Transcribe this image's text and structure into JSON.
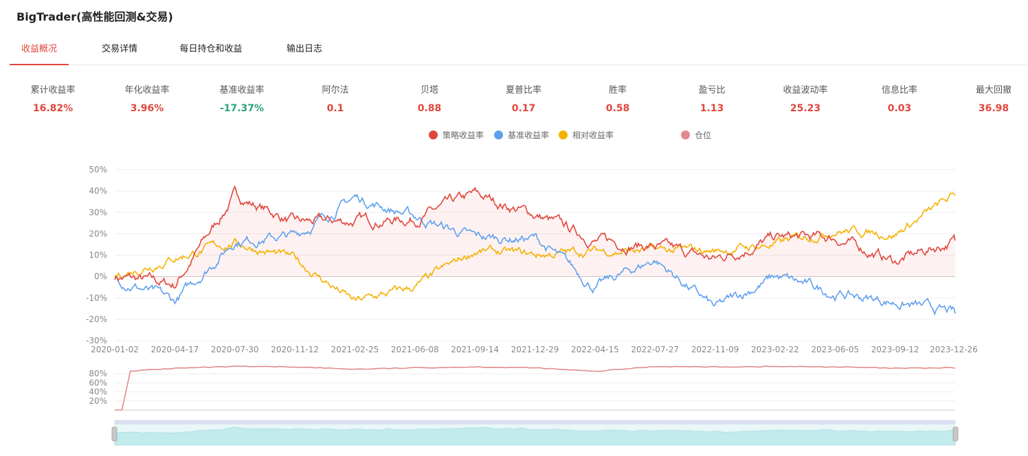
{
  "app": {
    "title": "BigTrader(高性能回测&交易)"
  },
  "tabs": [
    {
      "label": "收益概况",
      "active": true
    },
    {
      "label": "交易详情",
      "active": false
    },
    {
      "label": "每日持仓和收益",
      "active": false
    },
    {
      "label": "输出日志",
      "active": false
    }
  ],
  "metrics": [
    {
      "label": "累计收益率",
      "value": "16.82%",
      "color": "#e0463c"
    },
    {
      "label": "年化收益率",
      "value": "3.96%",
      "color": "#e0463c"
    },
    {
      "label": "基准收益率",
      "value": "-17.37%",
      "color": "#2aa57a"
    },
    {
      "label": "阿尔法",
      "value": "0.1",
      "color": "#e0463c"
    },
    {
      "label": "贝塔",
      "value": "0.88",
      "color": "#e0463c"
    },
    {
      "label": "夏普比率",
      "value": "0.17",
      "color": "#e0463c"
    },
    {
      "label": "胜率",
      "value": "0.58",
      "color": "#e0463c"
    },
    {
      "label": "盈亏比",
      "value": "1.13",
      "color": "#e0463c"
    },
    {
      "label": "收益波动率",
      "value": "25.23",
      "color": "#e0463c"
    },
    {
      "label": "信息比率",
      "value": "0.03",
      "color": "#e0463c"
    },
    {
      "label": "最大回撤",
      "value": "36.98",
      "color": "#e0463c"
    }
  ],
  "legend": [
    {
      "label": "策略收益率",
      "color": "#e0463c"
    },
    {
      "label": "基准收益率",
      "color": "#5fa0ee"
    },
    {
      "label": "相对收益率",
      "color": "#f5b000"
    },
    {
      "label": "仓位",
      "color": "#e38a8a"
    }
  ],
  "chart_data": [
    {
      "type": "line",
      "x": [
        "2020-01-02",
        "2020-04-17",
        "2020-07-30",
        "2020-11-12",
        "2021-02-25",
        "2021-06-08",
        "2021-09-14",
        "2021-12-29",
        "2022-04-15",
        "2022-07-27",
        "2022-11-09",
        "2023-02-22",
        "2023-06-05",
        "2023-09-12",
        "2023-12-26"
      ],
      "x_tick_labels": [
        "2020-01-02",
        "2020-04-17",
        "2020-07-30",
        "2020-11-12",
        "2021-02-25",
        "2021-06-08",
        "2021-09-14",
        "2021-12-29",
        "2022-04-15",
        "2022-07-27",
        "2022-11-09",
        "2023-02-22",
        "2023-06-05",
        "2023-09-12",
        "2023-12-26"
      ],
      "y_tick_labels": [
        "50%",
        "40%",
        "30%",
        "20%",
        "10%",
        "0%",
        "-10%",
        "-20%",
        "-30%"
      ],
      "ylim": [
        -30,
        50
      ],
      "y_unit": "%",
      "grid": true,
      "series": [
        {
          "name": "策略收益率",
          "color": "#e0463c",
          "values": [
            0,
            -4,
            38,
            25,
            26,
            27,
            38,
            29,
            17,
            14,
            8,
            18,
            18,
            7,
            16.82
          ]
        },
        {
          "name": "基准收益率",
          "color": "#5fa0ee",
          "values": [
            0,
            -12,
            17,
            19,
            37,
            28,
            18,
            18,
            -5,
            8,
            -15,
            0,
            -8,
            -12,
            -17.37
          ]
        },
        {
          "name": "相对收益率",
          "color": "#f5b000",
          "values": [
            0,
            9,
            16,
            8,
            -12,
            -5,
            12,
            10,
            12,
            12,
            12,
            15,
            22,
            20,
            38
          ]
        }
      ]
    },
    {
      "type": "area",
      "series": [
        {
          "name": "仓位",
          "color": "#e38a8a",
          "x": [
            "2020-01-02",
            "2020-01-15",
            "2020-02-01",
            "2020-04-17",
            "2020-07-30",
            "2020-11-12",
            "2021-02-25",
            "2021-06-08",
            "2021-09-14",
            "2021-12-29",
            "2022-04-15",
            "2022-07-27",
            "2022-11-09",
            "2023-02-22",
            "2023-06-05",
            "2023-09-12",
            "2023-12-26"
          ],
          "values": [
            0,
            0,
            86,
            92,
            96,
            95,
            90,
            93,
            95,
            93,
            85,
            96,
            95,
            96,
            95,
            92,
            93
          ]
        }
      ],
      "y_tick_labels": [
        "80%",
        "60%",
        "40%",
        "20%"
      ],
      "ylim": [
        0,
        100
      ]
    }
  ],
  "overview_labels": {
    "position_pane": "position-chart",
    "slider": "data-zoom-slider"
  }
}
